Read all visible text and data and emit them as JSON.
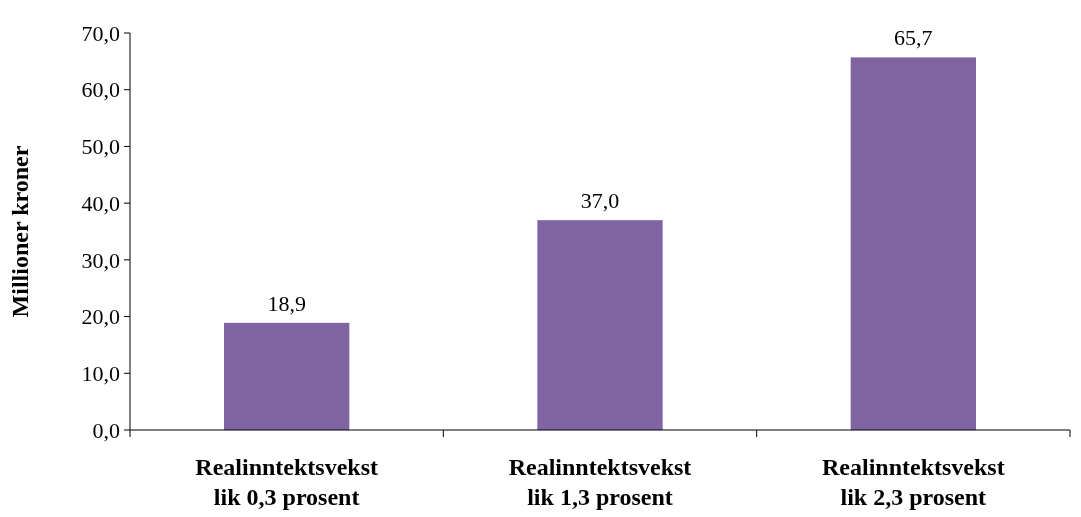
{
  "chart_data": {
    "type": "bar",
    "ylabel": "Millioner kroner",
    "categories": [
      "Realinntektsvekst lik 0,3 prosent",
      "Realinntektsvekst lik 1,3 prosent",
      "Realinntektsvekst lik 2,3 prosent"
    ],
    "values": [
      18.9,
      37.0,
      65.7
    ],
    "color": "#8064a2",
    "value_labels": [
      "18,9",
      "37,0",
      "65,7"
    ],
    "ylim": [
      0,
      70
    ],
    "yticks": [
      {
        "value": 0,
        "label": "0,0"
      },
      {
        "value": 10,
        "label": "10,0"
      },
      {
        "value": 20,
        "label": "20,0"
      },
      {
        "value": 30,
        "label": "30,0"
      },
      {
        "value": 40,
        "label": "40,0"
      },
      {
        "value": 50,
        "label": "50,0"
      },
      {
        "value": 60,
        "label": "60,0"
      },
      {
        "value": 70,
        "label": "70,0"
      }
    ],
    "grid": false
  }
}
